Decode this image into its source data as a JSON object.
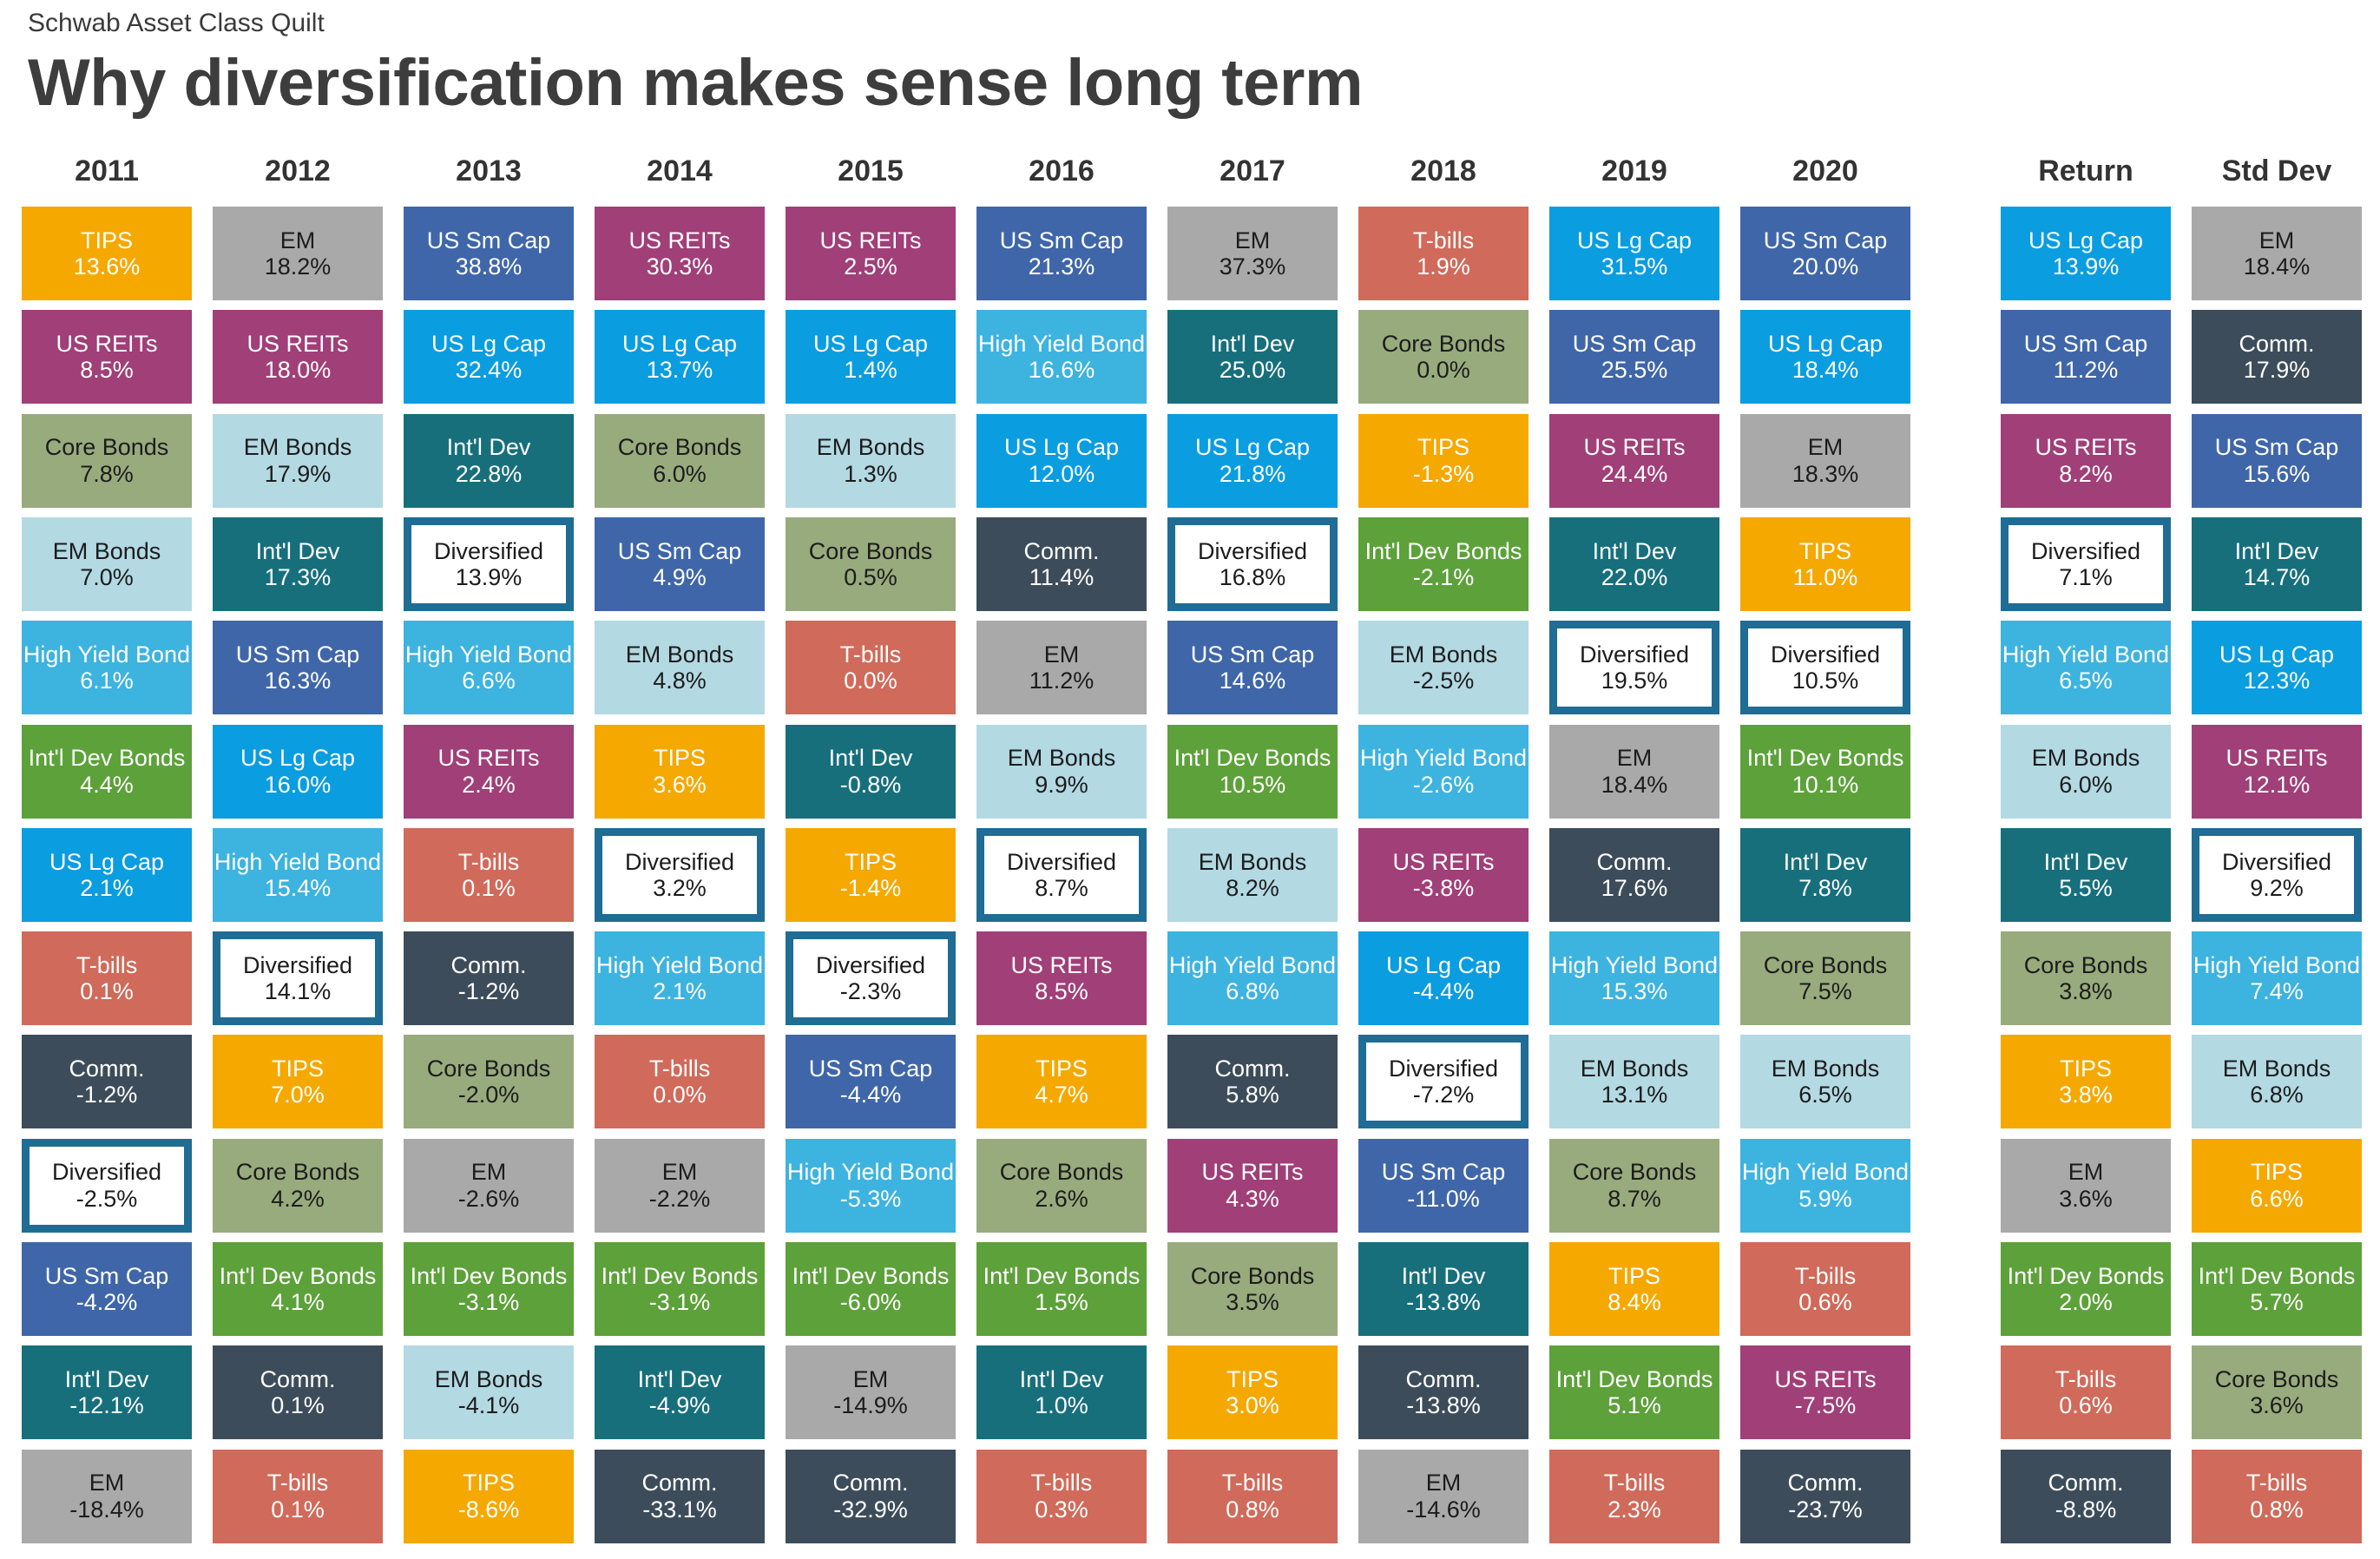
{
  "header": {
    "subtitle": "Schwab Asset Class Quilt",
    "title": "Why diversification makes sense long term"
  },
  "colors": {
    "TIPS": "#f5a800",
    "US REITs": "#a03f78",
    "Core Bonds": "#98ab7d",
    "EM Bonds": "#b3d9e3",
    "High Yield Bond": "#3db3e0",
    "Int'l Dev Bonds": "#5da13a",
    "US Lg Cap": "#0a9de0",
    "T-bills": "#d06a5a",
    "Comm.": "#3d4c5a",
    "Diversified": "#ffffff",
    "US Sm Cap": "#3f66a8",
    "Int'l Dev": "#176f7c",
    "EM": "#a9a9a9",
    "diversified_border": "#1f6c94"
  },
  "light_text_classes": [
    "Core Bonds",
    "EM Bonds",
    "EM",
    "Diversified"
  ],
  "chart_data": {
    "type": "table",
    "title": "Why diversification makes sense long term",
    "columns": [
      "2011",
      "2012",
      "2013",
      "2014",
      "2015",
      "2016",
      "2017",
      "2018",
      "2019",
      "2020",
      "Return",
      "Std Dev"
    ],
    "cells": [
      [
        [
          "TIPS",
          "13.6%"
        ],
        [
          "US REITs",
          "8.5%"
        ],
        [
          "Core Bonds",
          "7.8%"
        ],
        [
          "EM Bonds",
          "7.0%"
        ],
        [
          "High Yield Bond",
          "6.1%"
        ],
        [
          "Int'l Dev Bonds",
          "4.4%"
        ],
        [
          "US Lg Cap",
          "2.1%"
        ],
        [
          "T-bills",
          "0.1%"
        ],
        [
          "Comm.",
          "-1.2%"
        ],
        [
          "Diversified",
          "-2.5%"
        ],
        [
          "US Sm Cap",
          "-4.2%"
        ],
        [
          "Int'l Dev",
          "-12.1%"
        ],
        [
          "EM",
          "-18.4%"
        ]
      ],
      [
        [
          "EM",
          "18.2%"
        ],
        [
          "US REITs",
          "18.0%"
        ],
        [
          "EM Bonds",
          "17.9%"
        ],
        [
          "Int'l Dev",
          "17.3%"
        ],
        [
          "US Sm Cap",
          "16.3%"
        ],
        [
          "US Lg Cap",
          "16.0%"
        ],
        [
          "High Yield Bond",
          "15.4%"
        ],
        [
          "Diversified",
          "14.1%"
        ],
        [
          "TIPS",
          "7.0%"
        ],
        [
          "Core Bonds",
          "4.2%"
        ],
        [
          "Int'l Dev Bonds",
          "4.1%"
        ],
        [
          "Comm.",
          "0.1%"
        ],
        [
          "T-bills",
          "0.1%"
        ]
      ],
      [
        [
          "US Sm Cap",
          "38.8%"
        ],
        [
          "US Lg Cap",
          "32.4%"
        ],
        [
          "Int'l Dev",
          "22.8%"
        ],
        [
          "Diversified",
          "13.9%"
        ],
        [
          "High Yield Bond",
          "6.6%"
        ],
        [
          "US REITs",
          "2.4%"
        ],
        [
          "T-bills",
          "0.1%"
        ],
        [
          "Comm.",
          "-1.2%"
        ],
        [
          "Core Bonds",
          "-2.0%"
        ],
        [
          "EM",
          "-2.6%"
        ],
        [
          "Int'l Dev Bonds",
          "-3.1%"
        ],
        [
          "EM Bonds",
          "-4.1%"
        ],
        [
          "TIPS",
          "-8.6%"
        ]
      ],
      [
        [
          "US REITs",
          "30.3%"
        ],
        [
          "US Lg Cap",
          "13.7%"
        ],
        [
          "Core Bonds",
          "6.0%"
        ],
        [
          "US Sm Cap",
          "4.9%"
        ],
        [
          "EM Bonds",
          "4.8%"
        ],
        [
          "TIPS",
          "3.6%"
        ],
        [
          "Diversified",
          "3.2%"
        ],
        [
          "High Yield Bond",
          "2.1%"
        ],
        [
          "T-bills",
          "0.0%"
        ],
        [
          "EM",
          "-2.2%"
        ],
        [
          "Int'l Dev Bonds",
          "-3.1%"
        ],
        [
          "Int'l Dev",
          "-4.9%"
        ],
        [
          "Comm.",
          "-33.1%"
        ]
      ],
      [
        [
          "US REITs",
          "2.5%"
        ],
        [
          "US Lg Cap",
          "1.4%"
        ],
        [
          "EM Bonds",
          "1.3%"
        ],
        [
          "Core Bonds",
          "0.5%"
        ],
        [
          "T-bills",
          "0.0%"
        ],
        [
          "Int'l Dev",
          "-0.8%"
        ],
        [
          "TIPS",
          "-1.4%"
        ],
        [
          "Diversified",
          "-2.3%"
        ],
        [
          "US Sm Cap",
          "-4.4%"
        ],
        [
          "High Yield Bond",
          "-5.3%"
        ],
        [
          "Int'l Dev Bonds",
          "-6.0%"
        ],
        [
          "EM",
          "-14.9%"
        ],
        [
          "Comm.",
          "-32.9%"
        ]
      ],
      [
        [
          "US Sm Cap",
          "21.3%"
        ],
        [
          "High Yield Bond",
          "16.6%"
        ],
        [
          "US Lg Cap",
          "12.0%"
        ],
        [
          "Comm.",
          "11.4%"
        ],
        [
          "EM",
          "11.2%"
        ],
        [
          "EM Bonds",
          "9.9%"
        ],
        [
          "Diversified",
          "8.7%"
        ],
        [
          "US REITs",
          "8.5%"
        ],
        [
          "TIPS",
          "4.7%"
        ],
        [
          "Core Bonds",
          "2.6%"
        ],
        [
          "Int'l Dev Bonds",
          "1.5%"
        ],
        [
          "Int'l Dev",
          "1.0%"
        ],
        [
          "T-bills",
          "0.3%"
        ]
      ],
      [
        [
          "EM",
          "37.3%"
        ],
        [
          "Int'l Dev",
          "25.0%"
        ],
        [
          "US Lg Cap",
          "21.8%"
        ],
        [
          "Diversified",
          "16.8%"
        ],
        [
          "US Sm Cap",
          "14.6%"
        ],
        [
          "Int'l Dev Bonds",
          "10.5%"
        ],
        [
          "EM Bonds",
          "8.2%"
        ],
        [
          "High Yield Bond",
          "6.8%"
        ],
        [
          "Comm.",
          "5.8%"
        ],
        [
          "US REITs",
          "4.3%"
        ],
        [
          "Core Bonds",
          "3.5%"
        ],
        [
          "TIPS",
          "3.0%"
        ],
        [
          "T-bills",
          "0.8%"
        ]
      ],
      [
        [
          "T-bills",
          "1.9%"
        ],
        [
          "Core Bonds",
          "0.0%"
        ],
        [
          "TIPS",
          "-1.3%"
        ],
        [
          "Int'l Dev Bonds",
          "-2.1%"
        ],
        [
          "EM Bonds",
          "-2.5%"
        ],
        [
          "High Yield Bond",
          "-2.6%"
        ],
        [
          "US REITs",
          "-3.8%"
        ],
        [
          "US Lg Cap",
          "-4.4%"
        ],
        [
          "Diversified",
          "-7.2%"
        ],
        [
          "US Sm Cap",
          "-11.0%"
        ],
        [
          "Int'l Dev",
          "-13.8%"
        ],
        [
          "Comm.",
          "-13.8%"
        ],
        [
          "EM",
          "-14.6%"
        ]
      ],
      [
        [
          "US Lg Cap",
          "31.5%"
        ],
        [
          "US Sm Cap",
          "25.5%"
        ],
        [
          "US REITs",
          "24.4%"
        ],
        [
          "Int'l Dev",
          "22.0%"
        ],
        [
          "Diversified",
          "19.5%"
        ],
        [
          "EM",
          "18.4%"
        ],
        [
          "Comm.",
          "17.6%"
        ],
        [
          "High Yield Bond",
          "15.3%"
        ],
        [
          "EM Bonds",
          "13.1%"
        ],
        [
          "Core Bonds",
          "8.7%"
        ],
        [
          "TIPS",
          "8.4%"
        ],
        [
          "Int'l Dev Bonds",
          "5.1%"
        ],
        [
          "T-bills",
          "2.3%"
        ]
      ],
      [
        [
          "US Sm Cap",
          "20.0%"
        ],
        [
          "US Lg Cap",
          "18.4%"
        ],
        [
          "EM",
          "18.3%"
        ],
        [
          "TIPS",
          "11.0%"
        ],
        [
          "Diversified",
          "10.5%"
        ],
        [
          "Int'l Dev Bonds",
          "10.1%"
        ],
        [
          "Int'l Dev",
          "7.8%"
        ],
        [
          "Core Bonds",
          "7.5%"
        ],
        [
          "EM Bonds",
          "6.5%"
        ],
        [
          "High Yield Bond",
          "5.9%"
        ],
        [
          "T-bills",
          "0.6%"
        ],
        [
          "US REITs",
          "-7.5%"
        ],
        [
          "Comm.",
          "-23.7%"
        ]
      ],
      [
        [
          "US Lg Cap",
          "13.9%"
        ],
        [
          "US Sm Cap",
          "11.2%"
        ],
        [
          "US REITs",
          "8.2%"
        ],
        [
          "Diversified",
          "7.1%"
        ],
        [
          "High Yield Bond",
          "6.5%"
        ],
        [
          "EM Bonds",
          "6.0%"
        ],
        [
          "Int'l Dev",
          "5.5%"
        ],
        [
          "Core Bonds",
          "3.8%"
        ],
        [
          "TIPS",
          "3.8%"
        ],
        [
          "EM",
          "3.6%"
        ],
        [
          "Int'l Dev Bonds",
          "2.0%"
        ],
        [
          "T-bills",
          "0.6%"
        ],
        [
          "Comm.",
          "-8.8%"
        ]
      ],
      [
        [
          "EM",
          "18.4%"
        ],
        [
          "Comm.",
          "17.9%"
        ],
        [
          "US Sm Cap",
          "15.6%"
        ],
        [
          "Int'l Dev",
          "14.7%"
        ],
        [
          "US Lg Cap",
          "12.3%"
        ],
        [
          "US REITs",
          "12.1%"
        ],
        [
          "Diversified",
          "9.2%"
        ],
        [
          "High Yield Bond",
          "7.4%"
        ],
        [
          "EM Bonds",
          "6.8%"
        ],
        [
          "TIPS",
          "6.6%"
        ],
        [
          "Int'l Dev Bonds",
          "5.7%"
        ],
        [
          "Core Bonds",
          "3.6%"
        ],
        [
          "T-bills",
          "0.8%"
        ]
      ]
    ]
  }
}
